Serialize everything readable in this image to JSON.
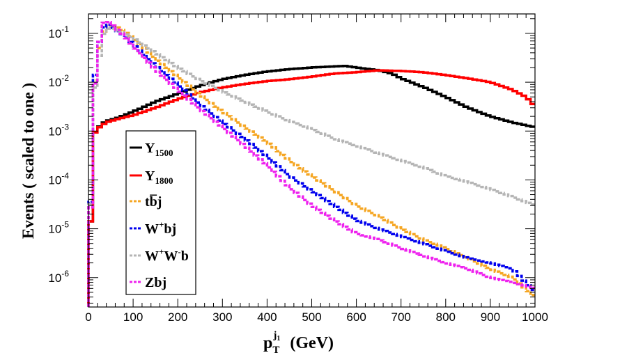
{
  "chart_data": {
    "type": "line",
    "style": "step-histogram",
    "title": "",
    "xlabel": {
      "base": "p",
      "sub": "T",
      "sup": "j",
      "supsub": "1",
      "unit": "(GeV)"
    },
    "ylabel": "Events  ( scaled to one )",
    "xlim": [
      0,
      1000
    ],
    "ylim": [
      2.5e-07,
      0.25
    ],
    "yscale": "log",
    "bin_width": 10,
    "x_ticks": [
      "0",
      "100",
      "200",
      "300",
      "400",
      "500",
      "600",
      "700",
      "800",
      "900",
      "1000"
    ],
    "y_ticks": [
      {
        "base": "10",
        "exp": "-6"
      },
      {
        "base": "10",
        "exp": "-5"
      },
      {
        "base": "10",
        "exp": "-4"
      },
      {
        "base": "10",
        "exp": "-3"
      },
      {
        "base": "10",
        "exp": "-2"
      },
      {
        "base": "10",
        "exp": "-1"
      }
    ],
    "legend_position": "left",
    "series": [
      {
        "name": "Y1500",
        "label_main": "Y",
        "label_sub": "1500",
        "color": "#000000",
        "dash": "solid",
        "points": [
          [
            0,
            2.5e-07
          ],
          [
            10,
            0.0008
          ],
          [
            20,
            0.0011
          ],
          [
            30,
            0.0014
          ],
          [
            40,
            0.0016
          ],
          [
            60,
            0.0018
          ],
          [
            80,
            0.0021
          ],
          [
            100,
            0.0025
          ],
          [
            120,
            0.003
          ],
          [
            150,
            0.004
          ],
          [
            200,
            0.0058
          ],
          [
            250,
            0.0085
          ],
          [
            300,
            0.0115
          ],
          [
            350,
            0.014
          ],
          [
            400,
            0.0165
          ],
          [
            450,
            0.0185
          ],
          [
            500,
            0.02
          ],
          [
            550,
            0.021
          ],
          [
            575,
            0.0215
          ],
          [
            600,
            0.02
          ],
          [
            650,
            0.0175
          ],
          [
            680,
            0.015
          ],
          [
            700,
            0.012
          ],
          [
            750,
            0.008
          ],
          [
            800,
            0.005
          ],
          [
            850,
            0.003
          ],
          [
            900,
            0.002
          ],
          [
            950,
            0.0015
          ],
          [
            1000,
            0.0012
          ]
        ]
      },
      {
        "name": "Y1800",
        "label_main": "Y",
        "label_sub": "1800",
        "color": "#ff0000",
        "dash": "solid",
        "points": [
          [
            0,
            2.5e-07
          ],
          [
            10,
            0.0008
          ],
          [
            20,
            0.0011
          ],
          [
            30,
            0.0013
          ],
          [
            40,
            0.0015
          ],
          [
            60,
            0.0017
          ],
          [
            80,
            0.0019
          ],
          [
            100,
            0.0021
          ],
          [
            150,
            0.003
          ],
          [
            200,
            0.0045
          ],
          [
            250,
            0.0062
          ],
          [
            300,
            0.0078
          ],
          [
            350,
            0.0092
          ],
          [
            400,
            0.0105
          ],
          [
            450,
            0.0115
          ],
          [
            500,
            0.013
          ],
          [
            550,
            0.015
          ],
          [
            600,
            0.016
          ],
          [
            650,
            0.0175
          ],
          [
            700,
            0.017
          ],
          [
            750,
            0.016
          ],
          [
            800,
            0.014
          ],
          [
            850,
            0.012
          ],
          [
            900,
            0.01
          ],
          [
            950,
            0.007
          ],
          [
            980,
            0.005
          ],
          [
            1000,
            0.0032
          ]
        ]
      },
      {
        "name": "tbbarj",
        "label": "tb̅j",
        "color": "#f5a623",
        "dash": "dash",
        "points": [
          [
            0,
            2.5e-07
          ],
          [
            10,
            0.004
          ],
          [
            20,
            0.03
          ],
          [
            30,
            0.085
          ],
          [
            40,
            0.14
          ],
          [
            50,
            0.15
          ],
          [
            60,
            0.14
          ],
          [
            80,
            0.11
          ],
          [
            100,
            0.08
          ],
          [
            120,
            0.055
          ],
          [
            150,
            0.03
          ],
          [
            200,
            0.013
          ],
          [
            250,
            0.0055
          ],
          [
            300,
            0.0025
          ],
          [
            350,
            0.0012
          ],
          [
            400,
            0.0006
          ],
          [
            450,
            0.00025
          ],
          [
            500,
            0.00012
          ],
          [
            550,
            6e-05
          ],
          [
            600,
            3e-05
          ],
          [
            650,
            1.8e-05
          ],
          [
            700,
            1e-05
          ],
          [
            750,
            6e-06
          ],
          [
            800,
            4e-06
          ],
          [
            850,
            2.5e-06
          ],
          [
            900,
            1.5e-06
          ],
          [
            950,
            1e-06
          ],
          [
            1000,
            4e-07
          ]
        ]
      },
      {
        "name": "W+bj",
        "label_main": "W",
        "label_sup": "+",
        "label_tail": "bj",
        "color": "#0000ee",
        "dash": "dash",
        "points": [
          [
            0,
            2.5e-07
          ],
          [
            10,
            0.005
          ],
          [
            20,
            0.04
          ],
          [
            30,
            0.11
          ],
          [
            40,
            0.16
          ],
          [
            50,
            0.14
          ],
          [
            60,
            0.12
          ],
          [
            80,
            0.09
          ],
          [
            100,
            0.06
          ],
          [
            120,
            0.04
          ],
          [
            150,
            0.022
          ],
          [
            200,
            0.009
          ],
          [
            250,
            0.0035
          ],
          [
            300,
            0.0015
          ],
          [
            350,
            0.0007
          ],
          [
            400,
            0.0003
          ],
          [
            450,
            0.00012
          ],
          [
            500,
            6e-05
          ],
          [
            550,
            3e-05
          ],
          [
            600,
            1.5e-05
          ],
          [
            650,
            1e-05
          ],
          [
            700,
            7e-06
          ],
          [
            750,
            5e-06
          ],
          [
            800,
            3.5e-06
          ],
          [
            850,
            2.5e-06
          ],
          [
            900,
            2e-06
          ],
          [
            950,
            1.5e-06
          ],
          [
            1000,
            5e-07
          ]
        ]
      },
      {
        "name": "W+W-b",
        "label_main": "W",
        "label_sup": "+",
        "label_main2": "W",
        "label_sup2": "-",
        "label_tail": "b",
        "color": "#b5b5b5",
        "dash": "dash",
        "points": [
          [
            0,
            2.5e-07
          ],
          [
            10,
            0.004
          ],
          [
            20,
            0.015
          ],
          [
            30,
            0.08
          ],
          [
            40,
            0.12
          ],
          [
            50,
            0.13
          ],
          [
            60,
            0.12
          ],
          [
            80,
            0.1
          ],
          [
            100,
            0.08
          ],
          [
            150,
            0.04
          ],
          [
            200,
            0.02
          ],
          [
            250,
            0.011
          ],
          [
            300,
            0.0065
          ],
          [
            350,
            0.004
          ],
          [
            400,
            0.0025
          ],
          [
            450,
            0.0016
          ],
          [
            500,
            0.0011
          ],
          [
            550,
            0.0007
          ],
          [
            600,
            0.0005
          ],
          [
            650,
            0.00035
          ],
          [
            700,
            0.00025
          ],
          [
            750,
            0.00018
          ],
          [
            800,
            0.00012
          ],
          [
            850,
            9e-05
          ],
          [
            900,
            6.5e-05
          ],
          [
            950,
            4.5e-05
          ],
          [
            1000,
            3e-05
          ]
        ]
      },
      {
        "name": "Zbj",
        "label": "Zbj",
        "color": "#ee22ee",
        "dash": "dash",
        "points": [
          [
            0,
            2.5e-07
          ],
          [
            10,
            0.003
          ],
          [
            20,
            0.03
          ],
          [
            30,
            0.15
          ],
          [
            40,
            0.18
          ],
          [
            50,
            0.16
          ],
          [
            60,
            0.13
          ],
          [
            80,
            0.09
          ],
          [
            100,
            0.055
          ],
          [
            120,
            0.035
          ],
          [
            150,
            0.018
          ],
          [
            200,
            0.007
          ],
          [
            250,
            0.0028
          ],
          [
            300,
            0.0012
          ],
          [
            350,
            0.0005
          ],
          [
            400,
            0.0002
          ],
          [
            450,
            7e-05
          ],
          [
            500,
            3e-05
          ],
          [
            550,
            1.5e-05
          ],
          [
            600,
            8e-06
          ],
          [
            650,
            6e-06
          ],
          [
            700,
            4e-06
          ],
          [
            750,
            2.8e-06
          ],
          [
            800,
            2e-06
          ],
          [
            850,
            1.5e-06
          ],
          [
            900,
            1e-06
          ],
          [
            950,
            8e-07
          ],
          [
            1000,
            6e-07
          ]
        ]
      }
    ]
  }
}
